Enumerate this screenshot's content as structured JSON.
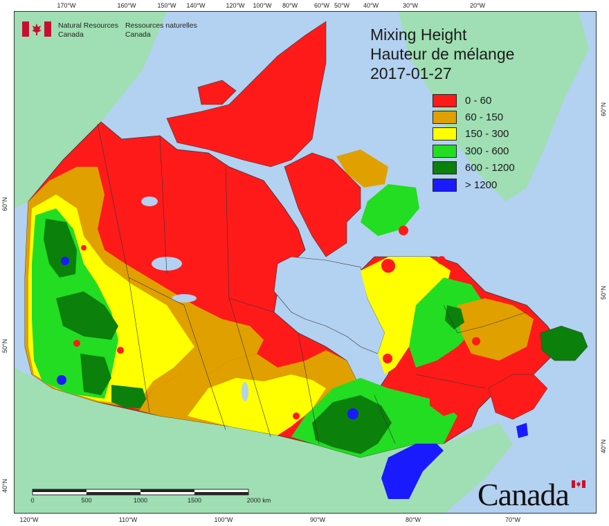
{
  "map": {
    "title": [
      "Mixing Height",
      "Hauteur de mélange",
      "2017-01-27"
    ],
    "agency": {
      "en": [
        "Natural Resources",
        "Canada"
      ],
      "fr": [
        "Ressources naturelles",
        "Canada"
      ]
    },
    "wordmark": "Canada",
    "legend": [
      {
        "label": "0 - 60",
        "color": "#ff1a1a"
      },
      {
        "label": "60 - 150",
        "color": "#e0a000"
      },
      {
        "label": "150 - 300",
        "color": "#ffff00"
      },
      {
        "label": "300 - 600",
        "color": "#22dd22"
      },
      {
        "label": "600 - 1200",
        "color": "#0b800b"
      },
      {
        "label": "> 1200",
        "color": "#1a1aff"
      }
    ],
    "scale_labels": [
      "0",
      "500",
      "1000",
      "1500",
      "2000  km"
    ],
    "graticule": {
      "top": [
        "170°W",
        "160°W",
        "150°W",
        "140°W",
        "120°W",
        "100°W",
        "80°W",
        "60°W",
        "50°W",
        "40°W",
        "30°W",
        "20°W"
      ],
      "bottom": [
        "120°W",
        "110°W",
        "100°W",
        "90°W",
        "80°W",
        "70°W"
      ],
      "left": [
        "60°N",
        "50°N",
        "40°N"
      ],
      "right": [
        "60°N",
        "50°N",
        "40°N"
      ]
    },
    "colors": {
      "ocean": "#b3d1f0",
      "land_outside": "#9fdfb3",
      "border": "#333333"
    }
  }
}
